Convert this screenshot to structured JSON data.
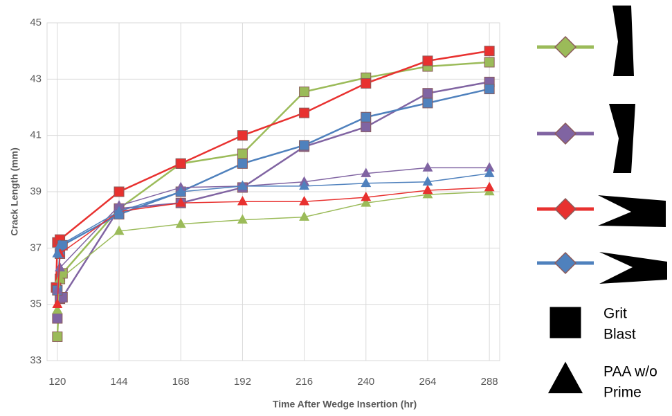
{
  "chart_data": {
    "type": "line",
    "x_label": "Time After Wedge Insertion (hr)",
    "y_label": "Crack Length (mm)",
    "xlim": [
      116,
      292
    ],
    "xticks": [
      120,
      144,
      168,
      192,
      216,
      240,
      264,
      288
    ],
    "ylim": [
      33,
      45
    ],
    "yticks": [
      33,
      35,
      37,
      39,
      41,
      43,
      45
    ],
    "grid": true,
    "series": [
      {
        "color": "#9bbb59",
        "marker": "square",
        "x": [
          120,
          121,
          122,
          144,
          168,
          192,
          216,
          240,
          264,
          288
        ],
        "values": [
          33.85,
          35.9,
          36.1,
          38.4,
          40.0,
          40.35,
          42.55,
          43.05,
          43.45,
          43.6
        ]
      },
      {
        "color": "#8064a2",
        "marker": "square",
        "x": [
          120,
          121,
          122,
          144,
          168,
          192,
          216,
          240,
          264,
          288
        ],
        "values": [
          34.5,
          35.2,
          35.25,
          38.4,
          38.6,
          39.15,
          40.6,
          41.3,
          42.5,
          42.9
        ]
      },
      {
        "color": "#e8312f",
        "marker": "square",
        "x": [
          119.5,
          120,
          121,
          144,
          168,
          192,
          216,
          240,
          264,
          288
        ],
        "values": [
          35.6,
          37.2,
          37.3,
          39.0,
          40.0,
          41.0,
          41.8,
          42.85,
          43.65,
          44.0
        ]
      },
      {
        "color": "#4f81bd",
        "marker": "square",
        "x": [
          120,
          121,
          122,
          144,
          168,
          192,
          216,
          240,
          264,
          288
        ],
        "values": [
          35.5,
          36.8,
          37.1,
          38.2,
          39.0,
          40.0,
          40.65,
          41.65,
          42.15,
          42.65
        ]
      },
      {
        "color": "#9bbb59",
        "marker": "triangle",
        "x": [
          120,
          121,
          144,
          168,
          192,
          216,
          240,
          264,
          288
        ],
        "values": [
          34.8,
          35.9,
          37.6,
          37.85,
          38.0,
          38.1,
          38.6,
          38.9,
          39.0
        ]
      },
      {
        "color": "#8064a2",
        "marker": "triangle",
        "x": [
          120,
          121,
          144,
          168,
          192,
          216,
          240,
          264,
          288
        ],
        "values": [
          35.5,
          36.3,
          38.5,
          39.15,
          39.2,
          39.35,
          39.65,
          39.85,
          39.85
        ]
      },
      {
        "color": "#e8312f",
        "marker": "triangle",
        "x": [
          120,
          121,
          144,
          168,
          192,
          216,
          240,
          264,
          288
        ],
        "values": [
          35.0,
          36.8,
          38.3,
          38.6,
          38.65,
          38.65,
          38.8,
          39.05,
          39.15
        ]
      },
      {
        "color": "#4f81bd",
        "marker": "triangle",
        "x": [
          120,
          121,
          144,
          168,
          192,
          216,
          240,
          264,
          288
        ],
        "values": [
          36.8,
          37.1,
          38.3,
          39.0,
          39.2,
          39.2,
          39.3,
          39.35,
          39.65
        ]
      }
    ],
    "marker_legend": [
      {
        "marker": "square",
        "label": [
          "Grit",
          "Blast"
        ]
      },
      {
        "marker": "triangle",
        "label": [
          "PAA w/o",
          "Prime"
        ]
      }
    ]
  }
}
